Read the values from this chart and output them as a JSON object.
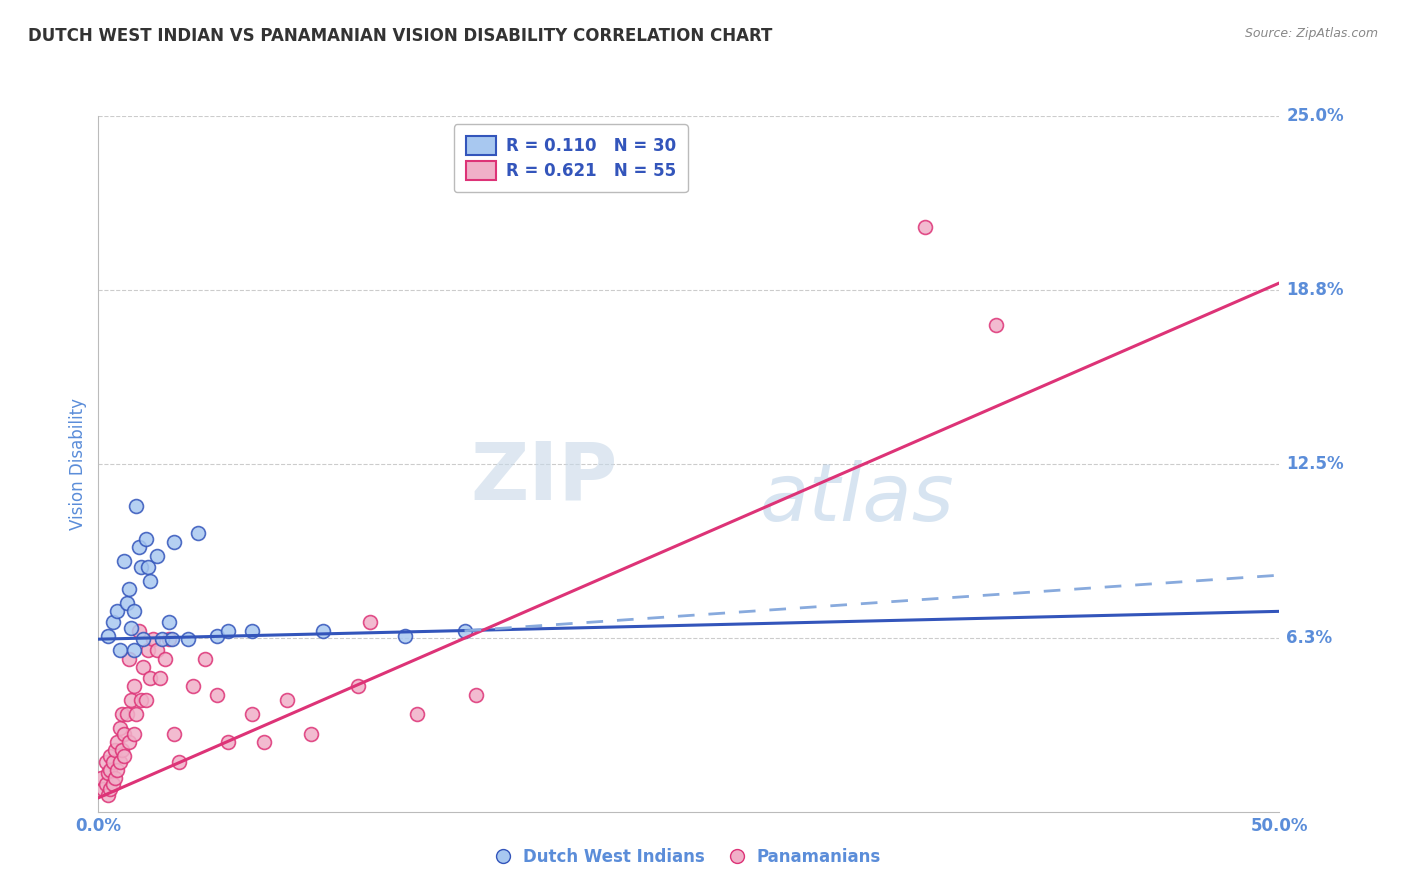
{
  "title": "DUTCH WEST INDIAN VS PANAMANIAN VISION DISABILITY CORRELATION CHART",
  "source": "Source: ZipAtlas.com",
  "ylabel": "Vision Disability",
  "xlim": [
    0.0,
    0.5
  ],
  "ylim": [
    0.0,
    0.25
  ],
  "xtick_labels": [
    "0.0%",
    "50.0%"
  ],
  "yticks": [
    0.0,
    0.0625,
    0.125,
    0.1875,
    0.25
  ],
  "ytick_labels": [
    "",
    "6.3%",
    "12.5%",
    "18.8%",
    "25.0%"
  ],
  "legend_lines": [
    {
      "label": "R = 0.110   N = 30",
      "color": "#5b8dd9"
    },
    {
      "label": "R = 0.621   N = 55",
      "color": "#e8608a"
    }
  ],
  "blue_dots": [
    [
      0.004,
      0.063
    ],
    [
      0.006,
      0.068
    ],
    [
      0.008,
      0.072
    ],
    [
      0.009,
      0.058
    ],
    [
      0.011,
      0.09
    ],
    [
      0.012,
      0.075
    ],
    [
      0.013,
      0.08
    ],
    [
      0.014,
      0.066
    ],
    [
      0.015,
      0.058
    ],
    [
      0.015,
      0.072
    ],
    [
      0.016,
      0.11
    ],
    [
      0.017,
      0.095
    ],
    [
      0.018,
      0.088
    ],
    [
      0.019,
      0.062
    ],
    [
      0.02,
      0.098
    ],
    [
      0.021,
      0.088
    ],
    [
      0.022,
      0.083
    ],
    [
      0.025,
      0.092
    ],
    [
      0.027,
      0.062
    ],
    [
      0.03,
      0.068
    ],
    [
      0.031,
      0.062
    ],
    [
      0.032,
      0.097
    ],
    [
      0.038,
      0.062
    ],
    [
      0.042,
      0.1
    ],
    [
      0.05,
      0.063
    ],
    [
      0.055,
      0.065
    ],
    [
      0.065,
      0.065
    ],
    [
      0.095,
      0.065
    ],
    [
      0.13,
      0.063
    ],
    [
      0.155,
      0.065
    ]
  ],
  "pink_dots": [
    [
      0.001,
      0.012
    ],
    [
      0.002,
      0.008
    ],
    [
      0.003,
      0.01
    ],
    [
      0.003,
      0.018
    ],
    [
      0.004,
      0.006
    ],
    [
      0.004,
      0.014
    ],
    [
      0.005,
      0.008
    ],
    [
      0.005,
      0.015
    ],
    [
      0.005,
      0.02
    ],
    [
      0.006,
      0.01
    ],
    [
      0.006,
      0.018
    ],
    [
      0.007,
      0.012
    ],
    [
      0.007,
      0.022
    ],
    [
      0.008,
      0.015
    ],
    [
      0.008,
      0.025
    ],
    [
      0.009,
      0.018
    ],
    [
      0.009,
      0.03
    ],
    [
      0.01,
      0.022
    ],
    [
      0.01,
      0.035
    ],
    [
      0.011,
      0.028
    ],
    [
      0.011,
      0.02
    ],
    [
      0.012,
      0.035
    ],
    [
      0.013,
      0.025
    ],
    [
      0.013,
      0.055
    ],
    [
      0.014,
      0.04
    ],
    [
      0.015,
      0.028
    ],
    [
      0.015,
      0.045
    ],
    [
      0.016,
      0.035
    ],
    [
      0.017,
      0.065
    ],
    [
      0.018,
      0.04
    ],
    [
      0.019,
      0.052
    ],
    [
      0.02,
      0.04
    ],
    [
      0.021,
      0.058
    ],
    [
      0.022,
      0.048
    ],
    [
      0.023,
      0.062
    ],
    [
      0.025,
      0.058
    ],
    [
      0.026,
      0.048
    ],
    [
      0.028,
      0.055
    ],
    [
      0.03,
      0.062
    ],
    [
      0.032,
      0.028
    ],
    [
      0.034,
      0.018
    ],
    [
      0.04,
      0.045
    ],
    [
      0.045,
      0.055
    ],
    [
      0.05,
      0.042
    ],
    [
      0.055,
      0.025
    ],
    [
      0.065,
      0.035
    ],
    [
      0.07,
      0.025
    ],
    [
      0.08,
      0.04
    ],
    [
      0.09,
      0.028
    ],
    [
      0.11,
      0.045
    ],
    [
      0.115,
      0.068
    ],
    [
      0.135,
      0.035
    ],
    [
      0.16,
      0.042
    ],
    [
      0.35,
      0.21
    ],
    [
      0.38,
      0.175
    ]
  ],
  "blue_line": {
    "x": [
      0.0,
      0.5
    ],
    "y": [
      0.062,
      0.072
    ]
  },
  "pink_line": {
    "x": [
      0.0,
      0.5
    ],
    "y": [
      0.005,
      0.19
    ]
  },
  "blue_dash_line": {
    "x": [
      0.155,
      0.5
    ],
    "y": [
      0.065,
      0.085
    ]
  },
  "watermark_zip": "ZIP",
  "watermark_atlas": "atlas",
  "bg_color": "#ffffff",
  "grid_color": "#cccccc",
  "title_color": "#333333",
  "axis_label_color": "#5b8dd9",
  "blue_dot_color": "#a8c8f0",
  "pink_dot_color": "#f0b0c8",
  "blue_line_color": "#3355bb",
  "pink_line_color": "#dd3377",
  "blue_dash_color": "#88aadd",
  "bottom_legend": [
    "Dutch West Indians",
    "Panamanians"
  ]
}
